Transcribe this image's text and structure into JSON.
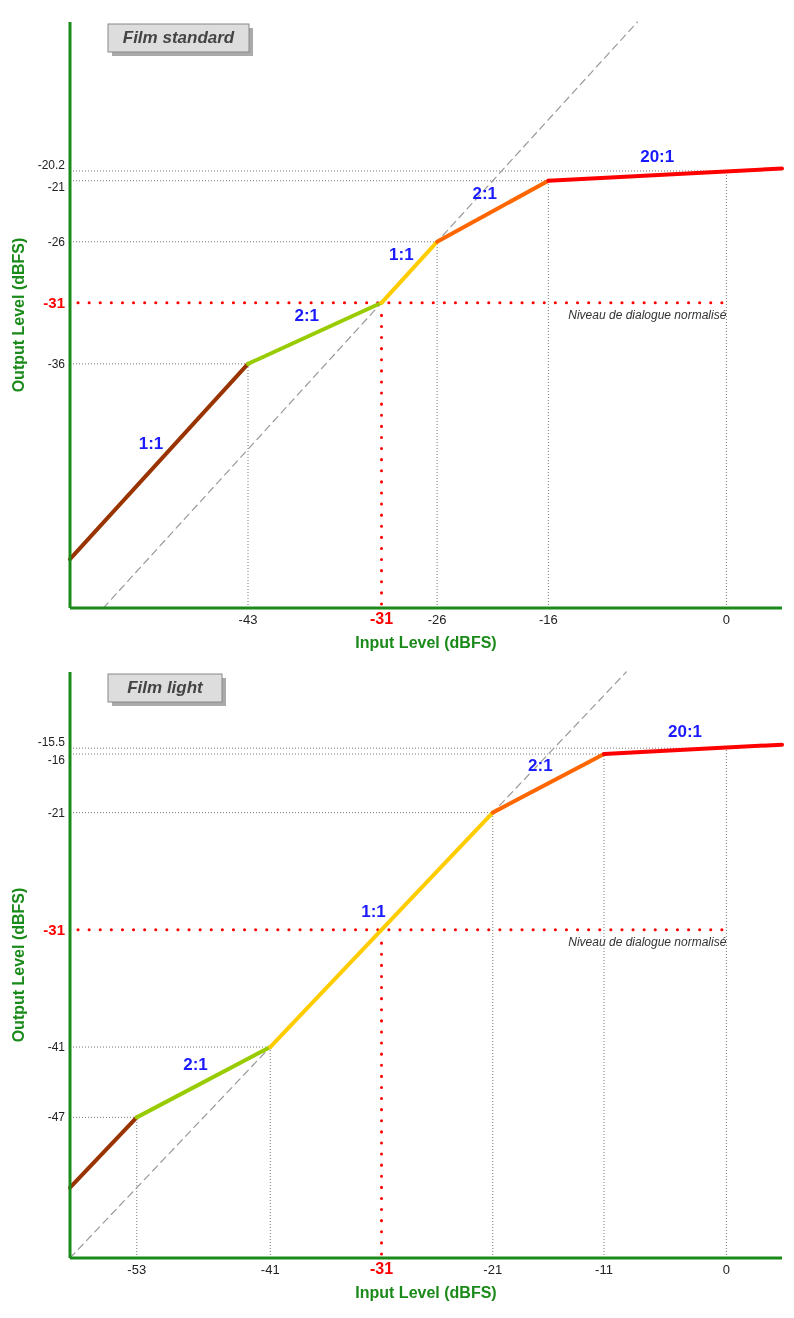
{
  "chart_data": [
    {
      "type": "line",
      "title": "Film standard",
      "xlabel": "Input Level (dBFS)",
      "ylabel": "Output Level (dBFS)",
      "xlim": [
        -59,
        5
      ],
      "ylim": [
        -56,
        -8
      ],
      "xticks": [
        -43,
        -31,
        -26,
        -16,
        0
      ],
      "yticks": [
        -20.2,
        -21,
        -26,
        -31,
        -36
      ],
      "series": [
        {
          "color": "#999999",
          "line_style": "dashed",
          "x": [
            -56,
            -8
          ],
          "values": [
            -56,
            -8
          ]
        },
        {
          "color": "#993300",
          "x": [
            -59,
            -43
          ],
          "values": [
            -52,
            -36
          ]
        },
        {
          "color": "#99cc00",
          "x": [
            -43,
            -31
          ],
          "values": [
            -36,
            -31
          ]
        },
        {
          "color": "#ffcc00",
          "x": [
            -31,
            -26
          ],
          "values": [
            -31,
            -26
          ]
        },
        {
          "color": "#ff6600",
          "x": [
            -26,
            -16
          ],
          "values": [
            -26,
            -21
          ]
        },
        {
          "color": "#ff0000",
          "x": [
            -16,
            5
          ],
          "values": [
            -21,
            -20
          ]
        }
      ],
      "ref_lines": [
        {
          "axis": "y",
          "value": -31,
          "label": "Niveau de dialogue normalisé",
          "color": "#ff0000",
          "line_style": "dotted"
        },
        {
          "axis": "x",
          "value": -31,
          "color": "#ff0000",
          "line_style": "dotted"
        },
        {
          "axis": "x",
          "value": -43,
          "color": "#777777",
          "line_style": "dotted"
        },
        {
          "axis": "x",
          "value": -26,
          "color": "#777777",
          "line_style": "dotted"
        },
        {
          "axis": "x",
          "value": -16,
          "color": "#777777",
          "line_style": "dotted"
        },
        {
          "axis": "x",
          "value": 0,
          "color": "#777777",
          "line_style": "dotted"
        },
        {
          "axis": "y",
          "value": -20.2,
          "color": "#777777",
          "line_style": "dotted"
        },
        {
          "axis": "y",
          "value": -21,
          "color": "#777777",
          "line_style": "dotted"
        },
        {
          "axis": "y",
          "value": -26,
          "color": "#777777",
          "line_style": "dotted"
        },
        {
          "axis": "y",
          "value": -36,
          "color": "#777777",
          "line_style": "dotted"
        }
      ],
      "annotations": [
        {
          "text": "1:1",
          "x": -51,
          "y": -44
        },
        {
          "text": "2:1",
          "x": -37,
          "y": -33.5
        },
        {
          "text": "1:1",
          "x": -28.5,
          "y": -28.5
        },
        {
          "text": "2:1",
          "x": -21,
          "y": -23.5
        },
        {
          "text": "20:1",
          "x": -5.5,
          "y": -20.5
        }
      ]
    },
    {
      "type": "line",
      "title": "Film light",
      "xlabel": "Input Level (dBFS)",
      "ylabel": "Output Level (dBFS)",
      "xlim": [
        -59,
        5
      ],
      "ylim": [
        -59,
        -9
      ],
      "xticks": [
        -53,
        -41,
        -31,
        -21,
        -11,
        0
      ],
      "yticks": [
        -15.5,
        -16,
        -21,
        -31,
        -41,
        -47
      ],
      "series": [
        {
          "color": "#999999",
          "line_style": "dashed",
          "x": [
            -59,
            -9
          ],
          "values": [
            -59,
            -9
          ]
        },
        {
          "color": "#993300",
          "x": [
            -59,
            -53
          ],
          "values": [
            -53,
            -47
          ]
        },
        {
          "color": "#99cc00",
          "x": [
            -53,
            -41
          ],
          "values": [
            -47,
            -41
          ]
        },
        {
          "color": "#ffcc00",
          "x": [
            -41,
            -21
          ],
          "values": [
            -41,
            -21
          ]
        },
        {
          "color": "#ff6600",
          "x": [
            -21,
            -11
          ],
          "values": [
            -21,
            -16
          ]
        },
        {
          "color": "#ff0000",
          "x": [
            -11,
            5
          ],
          "values": [
            -16,
            -15.2
          ]
        }
      ],
      "ref_lines": [
        {
          "axis": "y",
          "value": -31,
          "label": "Niveau de dialogue normalisé",
          "color": "#ff0000",
          "line_style": "dotted"
        },
        {
          "axis": "x",
          "value": -31,
          "color": "#ff0000",
          "line_style": "dotted"
        },
        {
          "axis": "x",
          "value": -53,
          "color": "#777777",
          "line_style": "dotted"
        },
        {
          "axis": "x",
          "value": -41,
          "color": "#777777",
          "line_style": "dotted"
        },
        {
          "axis": "x",
          "value": -21,
          "color": "#777777",
          "line_style": "dotted"
        },
        {
          "axis": "x",
          "value": -11,
          "color": "#777777",
          "line_style": "dotted"
        },
        {
          "axis": "x",
          "value": 0,
          "color": "#777777",
          "line_style": "dotted"
        },
        {
          "axis": "y",
          "value": -15.5,
          "color": "#777777",
          "line_style": "dotted"
        },
        {
          "axis": "y",
          "value": -16,
          "color": "#777777",
          "line_style": "dotted"
        },
        {
          "axis": "y",
          "value": -21,
          "color": "#777777",
          "line_style": "dotted"
        },
        {
          "axis": "y",
          "value": -41,
          "color": "#777777",
          "line_style": "dotted"
        },
        {
          "axis": "y",
          "value": -47,
          "color": "#777777",
          "line_style": "dotted"
        }
      ],
      "annotations": [
        {
          "text": "2:1",
          "x": -47,
          "y": -44
        },
        {
          "text": "1:1",
          "x": -31,
          "y": -31
        },
        {
          "text": "2:1",
          "x": -16,
          "y": -18.5
        },
        {
          "text": "20:1",
          "x": -3,
          "y": -15.6
        }
      ]
    }
  ]
}
